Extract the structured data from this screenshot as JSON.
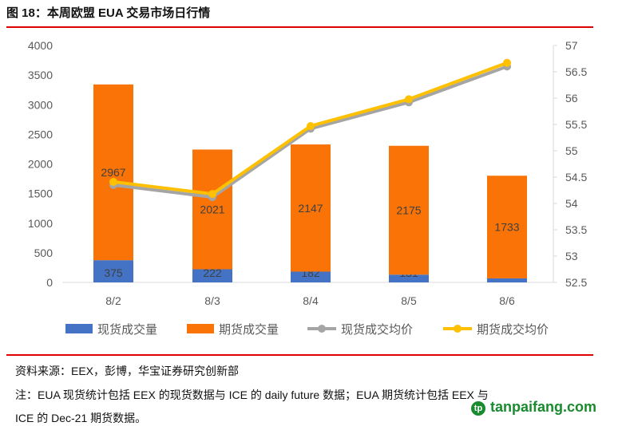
{
  "title": "图 18：本周欧盟 EUA 交易市场日行情",
  "source": "资料来源：EEX，彭博，华宝证券研究创新部",
  "note_line1": "注：EUA 现货统计包括 EEX 的现货数据与 ICE 的 daily future 数据；EUA 期货统计包括 EEX 与",
  "note_line2": "ICE 的 Dec-21 期货数据。",
  "watermark": "tanpaifang.com",
  "chart_data": {
    "type": "bar+line",
    "categories": [
      "8/2",
      "8/3",
      "8/4",
      "8/5",
      "8/6"
    ],
    "left_axis": {
      "ylim": [
        0,
        4000
      ],
      "ticks": [
        0,
        500,
        1000,
        1500,
        2000,
        2500,
        3000,
        3500,
        4000
      ]
    },
    "right_axis": {
      "ylim": [
        52.5,
        57
      ],
      "ticks": [
        "52.5",
        "53",
        "53.5",
        "54",
        "54.5",
        "55",
        "55.5",
        "56",
        "56.5",
        "57"
      ]
    },
    "bars": [
      {
        "name": "现货成交量",
        "color": "#4472c4",
        "values": [
          375,
          222,
          182,
          131,
          68
        ]
      },
      {
        "name": "期货成交量",
        "color": "#f97306",
        "values": [
          2967,
          2021,
          2147,
          2175,
          1733
        ]
      }
    ],
    "lines": [
      {
        "name": "现货成交均价",
        "color": "#a5a5a5",
        "values": [
          54.35,
          54.12,
          55.42,
          55.92,
          56.6
        ]
      },
      {
        "name": "期货成交均价",
        "color": "#ffc000",
        "values": [
          54.41,
          54.18,
          55.47,
          55.98,
          56.67
        ]
      }
    ],
    "stacked": true,
    "grid": false,
    "legend": "bottom"
  }
}
